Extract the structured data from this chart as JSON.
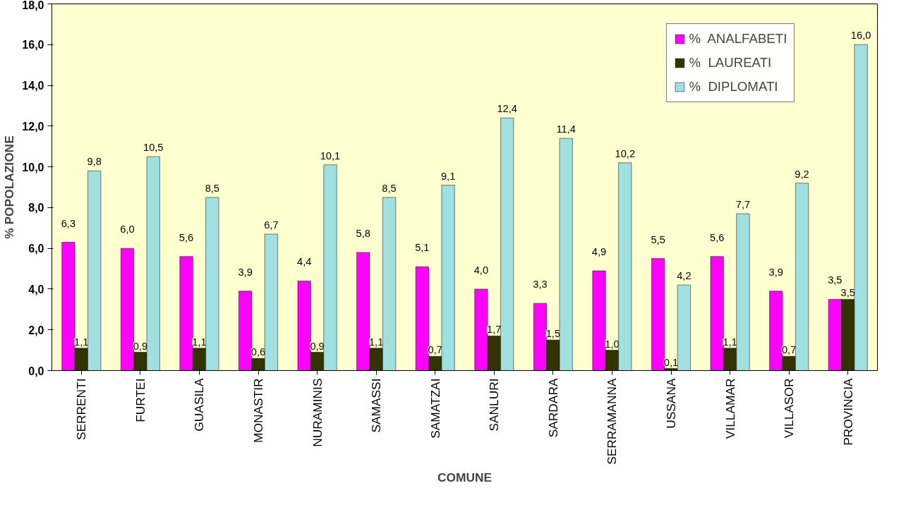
{
  "chart_data": {
    "type": "bar",
    "xlabel": "COMUNE",
    "ylabel": "% POPOLAZIONE",
    "categories": [
      "SERRENTI",
      "FURTEI",
      "GUASILA",
      "MONASTIR",
      "NURAMINIS",
      "SAMASSI",
      "SAMATZAI",
      "SANLURI",
      "SARDARA",
      "SERRAMANNA",
      "USSANA",
      "VILLAMAR",
      "VILLASOR",
      "PROVINCIA"
    ],
    "series": [
      {
        "name": "%  ANALFABETI",
        "color": "#ff00ff",
        "values": [
          6.3,
          6.0,
          5.6,
          3.9,
          4.4,
          5.8,
          5.1,
          4.0,
          3.3,
          4.9,
          5.5,
          5.6,
          3.9,
          3.5
        ],
        "value_labels": [
          "6,3",
          "6,0",
          "5,6",
          "3,9",
          "4,4",
          "5,8",
          "5,1",
          "4,0",
          "3,3",
          "4,9",
          "5,5",
          "5,6",
          "3,9",
          "3,5"
        ]
      },
      {
        "name": "%  LAUREATI",
        "color": "#333300",
        "values": [
          1.1,
          0.9,
          1.1,
          0.6,
          0.9,
          1.1,
          0.7,
          1.7,
          1.5,
          1.0,
          0.1,
          1.1,
          0.7,
          3.5
        ],
        "value_labels": [
          "1,1",
          "0,9",
          "1,1",
          "0,6",
          "0,9",
          "1,1",
          "0,7",
          "1,7",
          "1,5",
          "1,0",
          "0,1",
          "1,1",
          "0,7",
          "3,5"
        ]
      },
      {
        "name": "%  DIPLOMATI",
        "color": "#a0e0e0",
        "values": [
          9.8,
          10.5,
          8.5,
          6.7,
          10.1,
          8.5,
          9.1,
          12.4,
          11.4,
          10.2,
          4.2,
          7.7,
          9.2,
          16.0
        ],
        "value_labels": [
          "9,8",
          "10,5",
          "8,5",
          "6,7",
          "10,1",
          "8,5",
          "9,1",
          "12,4",
          "11,4",
          "10,2",
          "4,2",
          "7,7",
          "9,2",
          "16,0"
        ]
      }
    ],
    "ylim": [
      0,
      18
    ],
    "yticks": [
      {
        "value": 0,
        "label": "0,0"
      },
      {
        "value": 2,
        "label": "2,0"
      },
      {
        "value": 4,
        "label": "4,0"
      },
      {
        "value": 6,
        "label": "6,0"
      },
      {
        "value": 8,
        "label": "8,0"
      },
      {
        "value": 10,
        "label": "10,0"
      },
      {
        "value": 12,
        "label": "12,0"
      },
      {
        "value": 14,
        "label": "14,0"
      },
      {
        "value": 16,
        "label": "16,0"
      },
      {
        "value": 18,
        "label": "18,0"
      }
    ],
    "legend": "top right",
    "grid": false
  }
}
